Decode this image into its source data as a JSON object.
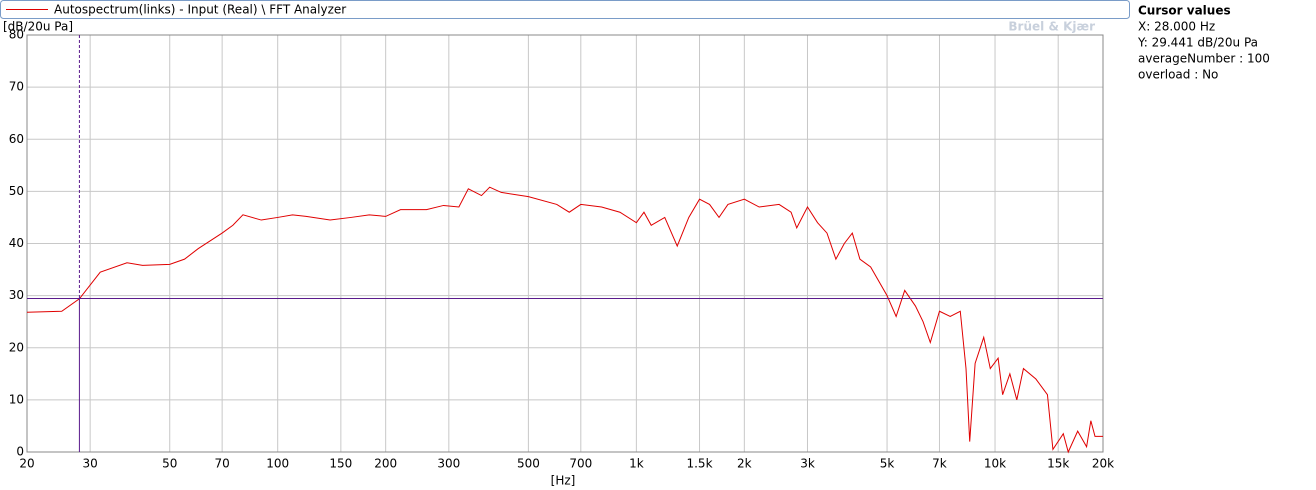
{
  "chart_data": {
    "type": "line",
    "legend_label": "Autospectrum(links) - Input (Real) \\ FFT Analyzer",
    "y_label": "[dB/20u Pa]",
    "x_label": "[Hz]",
    "watermark": "Brüel & Kjær",
    "log_x": true,
    "grid": true,
    "series": [
      {
        "name": "Autospectrum(links) - Input (Real) \\ FFT Analyzer",
        "color": "#e00000",
        "x": [
          20,
          25,
          28,
          32,
          38,
          42,
          50,
          55,
          60,
          70,
          75,
          80,
          90,
          100,
          110,
          120,
          140,
          160,
          180,
          200,
          220,
          260,
          290,
          320,
          340,
          370,
          390,
          420,
          500,
          600,
          650,
          700,
          800,
          900,
          1000,
          1050,
          1100,
          1200,
          1300,
          1400,
          1500,
          1600,
          1700,
          1800,
          2000,
          2200,
          2500,
          2700,
          2800,
          3000,
          3200,
          3400,
          3600,
          3800,
          4000,
          4200,
          4500,
          5000,
          5300,
          5600,
          6000,
          6300,
          6600,
          7000,
          7500,
          8000,
          8300,
          8500,
          8800,
          9300,
          9700,
          10200,
          10500,
          11000,
          11500,
          12000,
          13000,
          14000,
          14500,
          15500,
          16000,
          17000,
          18000,
          18500,
          19000,
          20000
        ],
        "values": [
          26.8,
          27,
          29.4,
          34.5,
          36.3,
          35.8,
          36,
          37,
          39,
          42,
          43.5,
          45.5,
          44.5,
          45,
          45.5,
          45.2,
          44.5,
          45,
          45.5,
          45.2,
          46.5,
          46.5,
          47.3,
          47,
          50.5,
          49.2,
          50.8,
          49.8,
          49,
          47.5,
          46,
          47.5,
          47,
          46,
          44,
          46,
          43.5,
          45,
          39.5,
          45,
          48.5,
          47.5,
          45,
          47.5,
          48.5,
          47,
          47.5,
          46,
          43,
          47,
          44,
          42,
          37,
          40,
          42,
          37,
          35.5,
          30,
          26,
          31,
          28,
          25,
          21,
          27,
          26,
          27,
          16,
          2,
          17,
          22,
          16,
          18,
          11,
          15,
          10,
          16,
          14,
          11,
          0.5,
          3.5,
          0,
          4,
          1,
          6,
          3,
          3
        ]
      }
    ],
    "xlim": [
      20,
      20000
    ],
    "xticks": [
      20,
      30,
      50,
      70,
      100,
      150,
      200,
      300,
      500,
      700,
      {
        "value": 1000,
        "label": "1k"
      },
      {
        "value": 1500,
        "label": "1.5k"
      },
      {
        "value": 2000,
        "label": "2k"
      },
      {
        "value": 3000,
        "label": "3k"
      },
      {
        "value": 5000,
        "label": "5k"
      },
      {
        "value": 7000,
        "label": "7k"
      },
      {
        "value": 10000,
        "label": "10k"
      },
      {
        "value": 15000,
        "label": "15k"
      },
      {
        "value": 20000,
        "label": "20k"
      }
    ],
    "ylim": [
      0,
      80
    ],
    "yticks": [
      0,
      10,
      20,
      30,
      40,
      50,
      60,
      70,
      80
    ],
    "cursor": {
      "x": 28,
      "y": 29.441,
      "color": "#5a1a8c"
    },
    "cursor_panel": {
      "title": "Cursor values",
      "lines": [
        "X: 28.000 Hz",
        "Y: 29.441 dB/20u Pa",
        "averageNumber : 100",
        "overload : No"
      ]
    }
  }
}
